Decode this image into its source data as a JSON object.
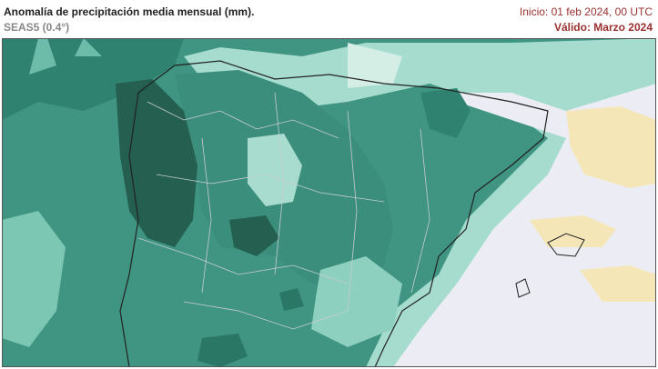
{
  "header": {
    "title": "Anomalía de precipitación media mensual (mm).",
    "model": "SEAS5 (0.4°)",
    "init": "Inicio: 01 feb 2024, 00 UTC",
    "valid": "Válido: Marzo 2024"
  }
}
